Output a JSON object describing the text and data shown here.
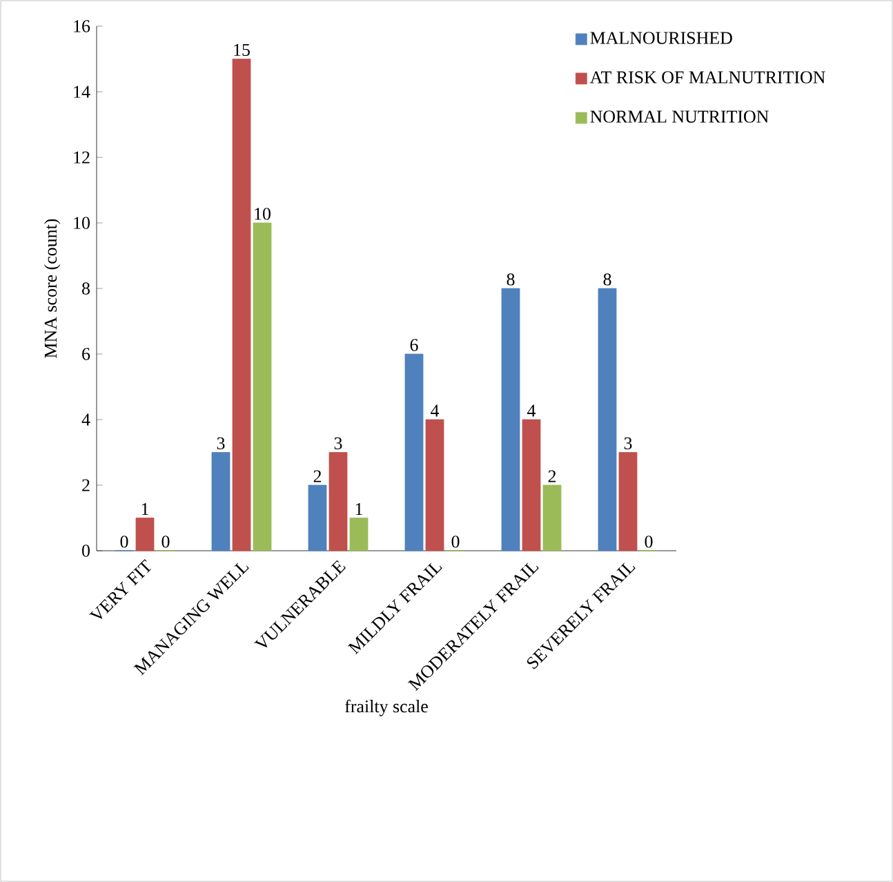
{
  "chart_data": {
    "type": "bar",
    "xlabel": "frailty scale",
    "ylabel": "MNA score (count)",
    "categories": [
      "VERY FIT",
      "MANAGING WELL",
      "VULNERABLE",
      "MILDLY FRAIL",
      "MODERATELY FRAIL",
      "SEVERELY FRAIL"
    ],
    "series": [
      {
        "name": "MALNOURISHED",
        "color": "#4f81bd",
        "values": [
          0,
          3,
          2,
          6,
          8,
          8
        ]
      },
      {
        "name": "AT RISK OF MALNUTRITION",
        "color": "#c0504d",
        "values": [
          1,
          15,
          3,
          4,
          4,
          3
        ]
      },
      {
        "name": "NORMAL NUTRITION",
        "color": "#9bbb59",
        "values": [
          0,
          10,
          1,
          0,
          2,
          0
        ]
      }
    ],
    "ylim": [
      0,
      16
    ],
    "yticks": [
      0,
      2,
      4,
      6,
      8,
      10,
      12,
      14,
      16
    ],
    "grid": false,
    "legend": "top right",
    "data_labels": true
  }
}
